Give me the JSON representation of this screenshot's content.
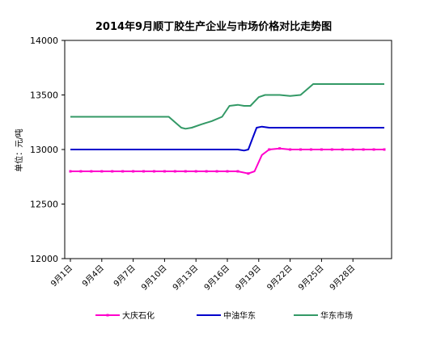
{
  "chart_data": {
    "type": "line",
    "title": "2014年9月顺丁胶生产企业与市场价格对比走势图",
    "ylabel": "单位：元/吨",
    "xlabel": "",
    "ylim": [
      12000,
      14000
    ],
    "yticks": [
      12000,
      12500,
      13000,
      13500,
      14000
    ],
    "xlim": [
      1,
      31
    ],
    "xticks": [
      {
        "day": 1,
        "label": "9月1日"
      },
      {
        "day": 4,
        "label": "9月4日"
      },
      {
        "day": 7,
        "label": "9月7日"
      },
      {
        "day": 10,
        "label": "9月10日"
      },
      {
        "day": 13,
        "label": "9月13日"
      },
      {
        "day": 16,
        "label": "9月16日"
      },
      {
        "day": 19,
        "label": "9月19日"
      },
      {
        "day": 22,
        "label": "9月22日"
      },
      {
        "day": 25,
        "label": "9月25日"
      },
      {
        "day": 28,
        "label": "9月28日"
      }
    ],
    "grid": false,
    "legend_position": "bottom",
    "series": [
      {
        "name": "大庆石化",
        "color": "#ff00cc",
        "marker": true,
        "points": [
          [
            1,
            12800
          ],
          [
            2,
            12800
          ],
          [
            3,
            12800
          ],
          [
            4,
            12800
          ],
          [
            5,
            12800
          ],
          [
            6,
            12800
          ],
          [
            7,
            12800
          ],
          [
            8,
            12800
          ],
          [
            9,
            12800
          ],
          [
            10,
            12800
          ],
          [
            11,
            12800
          ],
          [
            12,
            12800
          ],
          [
            13,
            12800
          ],
          [
            14,
            12800
          ],
          [
            15,
            12800
          ],
          [
            16,
            12800
          ],
          [
            17,
            12800
          ],
          [
            18,
            12780
          ],
          [
            18.6,
            12800
          ],
          [
            19.3,
            12950
          ],
          [
            20,
            13000
          ],
          [
            21,
            13010
          ],
          [
            22,
            13000
          ],
          [
            23,
            13000
          ],
          [
            24,
            13000
          ],
          [
            25,
            13000
          ],
          [
            26,
            13000
          ],
          [
            27,
            13000
          ],
          [
            28,
            13000
          ],
          [
            29,
            13000
          ],
          [
            30,
            13000
          ],
          [
            31,
            13000
          ]
        ]
      },
      {
        "name": "中油华东",
        "color": "#0000cc",
        "marker": false,
        "points": [
          [
            1,
            13000
          ],
          [
            5,
            13000
          ],
          [
            10,
            13000
          ],
          [
            15,
            13000
          ],
          [
            17,
            13000
          ],
          [
            17.6,
            12990
          ],
          [
            18,
            13000
          ],
          [
            18.4,
            13100
          ],
          [
            18.8,
            13200
          ],
          [
            19.3,
            13210
          ],
          [
            20,
            13200
          ],
          [
            25,
            13200
          ],
          [
            31,
            13200
          ]
        ]
      },
      {
        "name": "华东市场",
        "color": "#339966",
        "marker": false,
        "points": [
          [
            1,
            13300
          ],
          [
            5,
            13300
          ],
          [
            10,
            13300
          ],
          [
            10.4,
            13300
          ],
          [
            11,
            13250
          ],
          [
            11.6,
            13200
          ],
          [
            12,
            13190
          ],
          [
            12.6,
            13200
          ],
          [
            13.5,
            13230
          ],
          [
            14.5,
            13260
          ],
          [
            15.5,
            13300
          ],
          [
            16.2,
            13400
          ],
          [
            17,
            13410
          ],
          [
            17.6,
            13400
          ],
          [
            18.2,
            13400
          ],
          [
            19,
            13480
          ],
          [
            19.6,
            13500
          ],
          [
            21,
            13500
          ],
          [
            22,
            13490
          ],
          [
            23,
            13500
          ],
          [
            23.6,
            13550
          ],
          [
            24.2,
            13600
          ],
          [
            25,
            13600
          ],
          [
            31,
            13600
          ]
        ]
      }
    ]
  }
}
